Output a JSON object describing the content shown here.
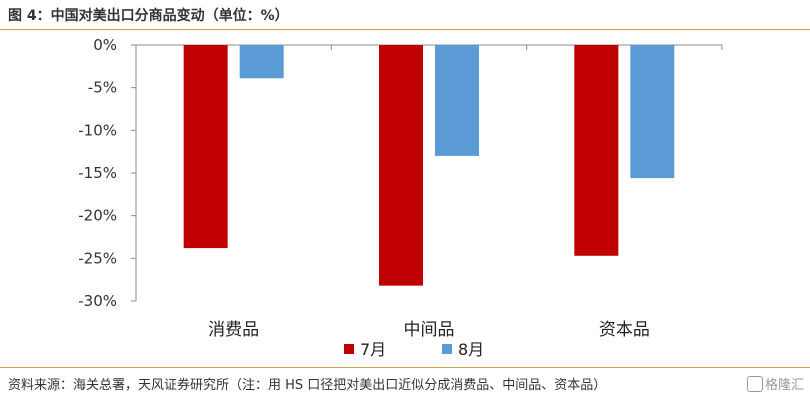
{
  "title": "图 4：中国对美出口分商品变动（单位：%）",
  "source": "资料来源：海关总署，天风证券研究所（注：用 HS 口径把对美出口近似分成消费品、中间品、资本品）",
  "watermark": "格隆汇",
  "colors": {
    "july": "#c00000",
    "august": "#5b9bd5",
    "rule": "#c9a64a"
  },
  "chart_data": {
    "type": "bar",
    "categories": [
      "消费品",
      "中间品",
      "资本品"
    ],
    "series": [
      {
        "name": "7月",
        "values": [
          -23.8,
          -28.2,
          -24.7
        ]
      },
      {
        "name": "8月",
        "values": [
          -3.9,
          -13.0,
          -15.6
        ]
      }
    ],
    "ylim": [
      -30,
      0
    ],
    "yticks": [
      "0%",
      "-5%",
      "-10%",
      "-15%",
      "-20%",
      "-25%",
      "-30%"
    ],
    "xlabel": "",
    "ylabel": "",
    "legend": "bottom",
    "grid": false
  }
}
